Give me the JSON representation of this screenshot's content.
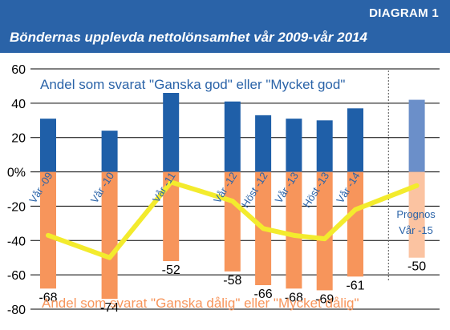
{
  "header": {
    "diagram_label": "DIAGRAM 1",
    "title": "Böndernas upplevda nettolönsamhet  vår 2009-vår 2014"
  },
  "colors": {
    "header_bg": "#2a63a8",
    "positive_bar": "#1f5fa8",
    "negative_bar": "#f7955b",
    "prognosis_positive": "#6b8fc9",
    "prognosis_negative": "#fbc3a1",
    "line": "#f3eb2d",
    "positive_text": "#2a63a8",
    "negative_text": "#f7955b",
    "grid": "#000000"
  },
  "chart_data": {
    "type": "bar",
    "title": "Böndernas upplevda nettolönsamhet  vår 2009-vår 2014",
    "ylim": [
      -80,
      60
    ],
    "yticks": [
      "60",
      "40",
      "20",
      "0%",
      "-20",
      "-40",
      "-60",
      "-80"
    ],
    "ytick_values": [
      60,
      40,
      20,
      0,
      -20,
      -40,
      -60,
      -80
    ],
    "grid": true,
    "categories": [
      "Vår -09",
      "Vår -10",
      "Vår -11",
      "Vår -12",
      "Höst -12",
      "Vår -13",
      "Höst -13",
      "Vår -14",
      "Prognos Vår -15"
    ],
    "category_slots": [
      0,
      2,
      4,
      6,
      7,
      8,
      9,
      10,
      12
    ],
    "series": [
      {
        "name": "Andel som svarat \"Ganska god\" eller \"Mycket god\"",
        "values": [
          31,
          24,
          46,
          41,
          33,
          31,
          30,
          37,
          42
        ]
      },
      {
        "name": "Andel som svarat \"Ganska dålig\" eller \"Mycket dålig\"",
        "values": [
          -68,
          -74,
          -52,
          -58,
          -66,
          -68,
          -69,
          -61,
          -50
        ]
      },
      {
        "name": "",
        "type": "line",
        "values": [
          -37,
          -50,
          -6,
          -17,
          -33,
          -37,
          -39,
          -22,
          -8
        ]
      }
    ],
    "negative_labels": [
      "-68",
      "-74",
      "-52",
      "-58",
      "-66",
      "-68",
      "-69",
      "-61",
      "-50"
    ],
    "prognosis_label_lines": [
      "Prognos",
      "Vår -15"
    ]
  }
}
